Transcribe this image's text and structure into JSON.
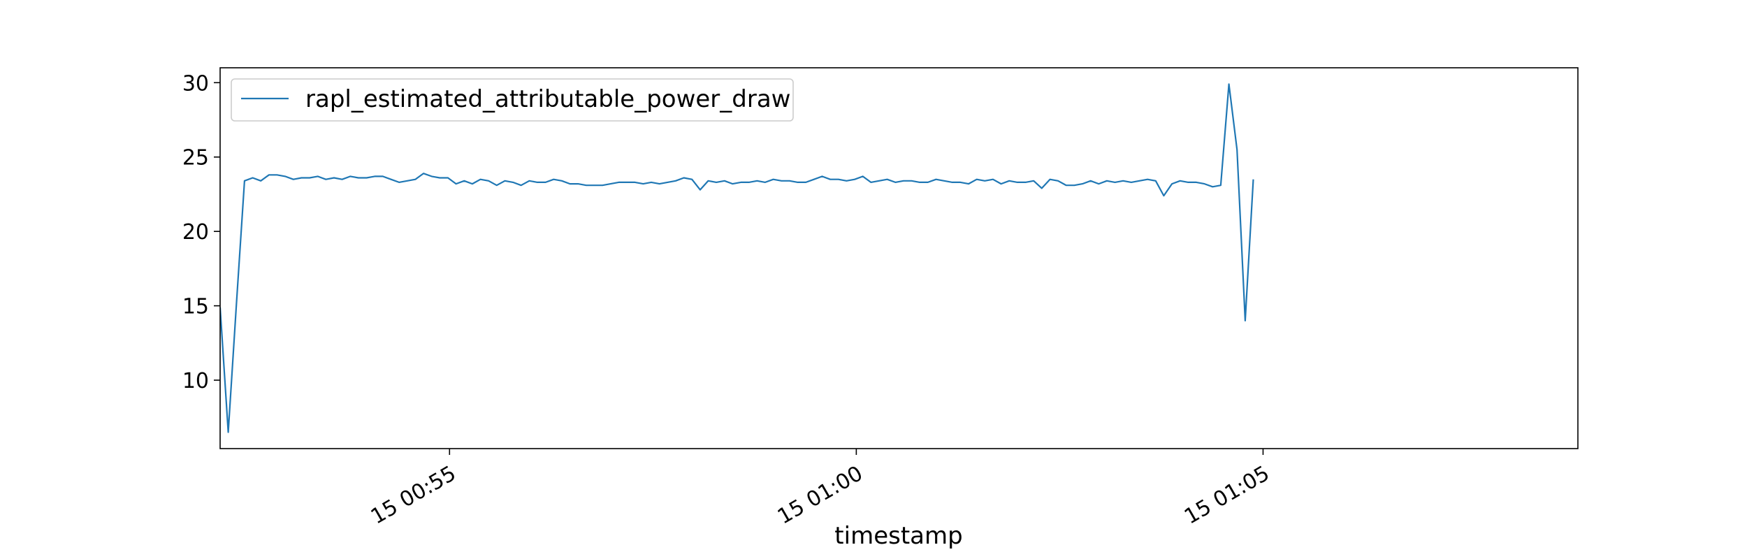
{
  "chart_data": {
    "type": "line",
    "title": "",
    "xlabel": "timestamp",
    "ylabel": "",
    "ylim": [
      5.4,
      31.0
    ],
    "yticks": [
      10,
      15,
      20,
      25,
      30
    ],
    "ytick_labels": [
      "10",
      "15",
      "20",
      "25",
      "30"
    ],
    "x_range_minutes": [
      -2.82,
      13.87
    ],
    "xtick_minutes": [
      0,
      5,
      10
    ],
    "xtick_labels": [
      "15 00:55",
      "15 01:00",
      "15 01:05"
    ],
    "grid": false,
    "legend_position": "upper left",
    "series": [
      {
        "name": "rapl_estimated_attributable_power_draw",
        "color": "#1f77b4",
        "x_minutes_from": -2.82,
        "x_step_minutes": 0.1,
        "values": [
          14.9,
          6.5,
          15.1,
          23.4,
          23.6,
          23.4,
          23.8,
          23.8,
          23.7,
          23.5,
          23.6,
          23.6,
          23.7,
          23.5,
          23.6,
          23.5,
          23.7,
          23.6,
          23.6,
          23.7,
          23.7,
          23.5,
          23.3,
          23.4,
          23.5,
          23.9,
          23.7,
          23.6,
          23.6,
          23.2,
          23.4,
          23.2,
          23.5,
          23.4,
          23.1,
          23.4,
          23.3,
          23.1,
          23.4,
          23.3,
          23.3,
          23.5,
          23.4,
          23.2,
          23.2,
          23.1,
          23.1,
          23.1,
          23.2,
          23.3,
          23.3,
          23.3,
          23.2,
          23.3,
          23.2,
          23.3,
          23.4,
          23.6,
          23.5,
          22.8,
          23.4,
          23.3,
          23.4,
          23.2,
          23.3,
          23.3,
          23.4,
          23.3,
          23.5,
          23.4,
          23.4,
          23.3,
          23.3,
          23.5,
          23.7,
          23.5,
          23.5,
          23.4,
          23.5,
          23.7,
          23.3,
          23.4,
          23.5,
          23.3,
          23.4,
          23.4,
          23.3,
          23.3,
          23.5,
          23.4,
          23.3,
          23.3,
          23.2,
          23.5,
          23.4,
          23.5,
          23.2,
          23.4,
          23.3,
          23.3,
          23.4,
          22.9,
          23.5,
          23.4,
          23.1,
          23.1,
          23.2,
          23.4,
          23.2,
          23.4,
          23.3,
          23.4,
          23.3,
          23.4,
          23.5,
          23.4,
          22.4,
          23.2,
          23.4,
          23.3,
          23.3,
          23.2,
          23.0,
          23.1,
          29.9,
          25.5,
          14.0,
          23.5
        ]
      }
    ]
  }
}
